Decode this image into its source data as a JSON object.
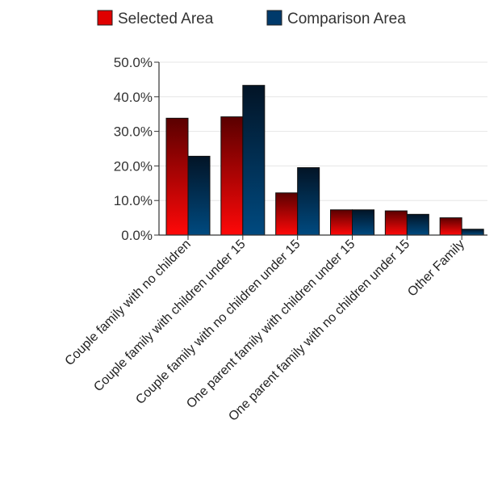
{
  "chart_data": {
    "type": "bar",
    "categories": [
      "Couple family with no children",
      "Couple family with children under 15",
      "Couple family with no children under 15",
      "One parent family with children under 15",
      "One parent family with no children under 15",
      "Other Family"
    ],
    "series": [
      {
        "name": "Selected Area",
        "values": [
          33.8,
          34.2,
          12.2,
          7.3,
          7.0,
          5.0
        ],
        "color": "#e00000"
      },
      {
        "name": "Comparison Area",
        "values": [
          22.8,
          43.3,
          19.5,
          7.3,
          6.0,
          1.7
        ],
        "color": "#003a6b"
      }
    ],
    "title": "",
    "xlabel": "",
    "ylabel": "",
    "ylim": [
      0,
      50
    ],
    "yticks": [
      "0.0%",
      "10.0%",
      "20.0%",
      "30.0%",
      "40.0%",
      "50.0%"
    ],
    "grid": true,
    "legend_position": "top"
  }
}
